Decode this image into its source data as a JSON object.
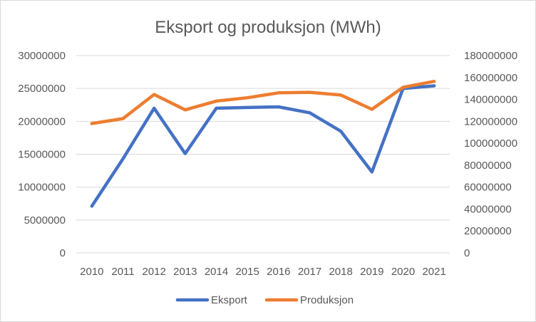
{
  "chart_data": {
    "type": "line",
    "title": "Eksport og produksjon (MWh)",
    "categories": [
      "2010",
      "2011",
      "2012",
      "2013",
      "2014",
      "2015",
      "2016",
      "2017",
      "2018",
      "2019",
      "2020",
      "2021"
    ],
    "series": [
      {
        "name": "Eksport",
        "axis": "left",
        "color": "#4472C4",
        "values": [
          7100000,
          14300000,
          22000000,
          15100000,
          22000000,
          22100000,
          22200000,
          21300000,
          18500000,
          12300000,
          25000000,
          25400000
        ]
      },
      {
        "name": "Produksjon",
        "axis": "right",
        "color": "#ED7D31",
        "values": [
          118000000,
          122500000,
          144500000,
          130500000,
          138500000,
          141500000,
          146000000,
          146500000,
          144000000,
          131000000,
          151000000,
          156500000
        ]
      }
    ],
    "y_left": {
      "min": 0,
      "max": 30000000,
      "ticks": [
        "0",
        "5000000",
        "10000000",
        "15000000",
        "20000000",
        "25000000",
        "30000000"
      ]
    },
    "y_right": {
      "min": 0,
      "max": 180000000,
      "ticks": [
        "0",
        "20000000",
        "40000000",
        "60000000",
        "80000000",
        "100000000",
        "120000000",
        "140000000",
        "160000000",
        "180000000"
      ]
    },
    "grid": true,
    "legend_position": "bottom"
  }
}
